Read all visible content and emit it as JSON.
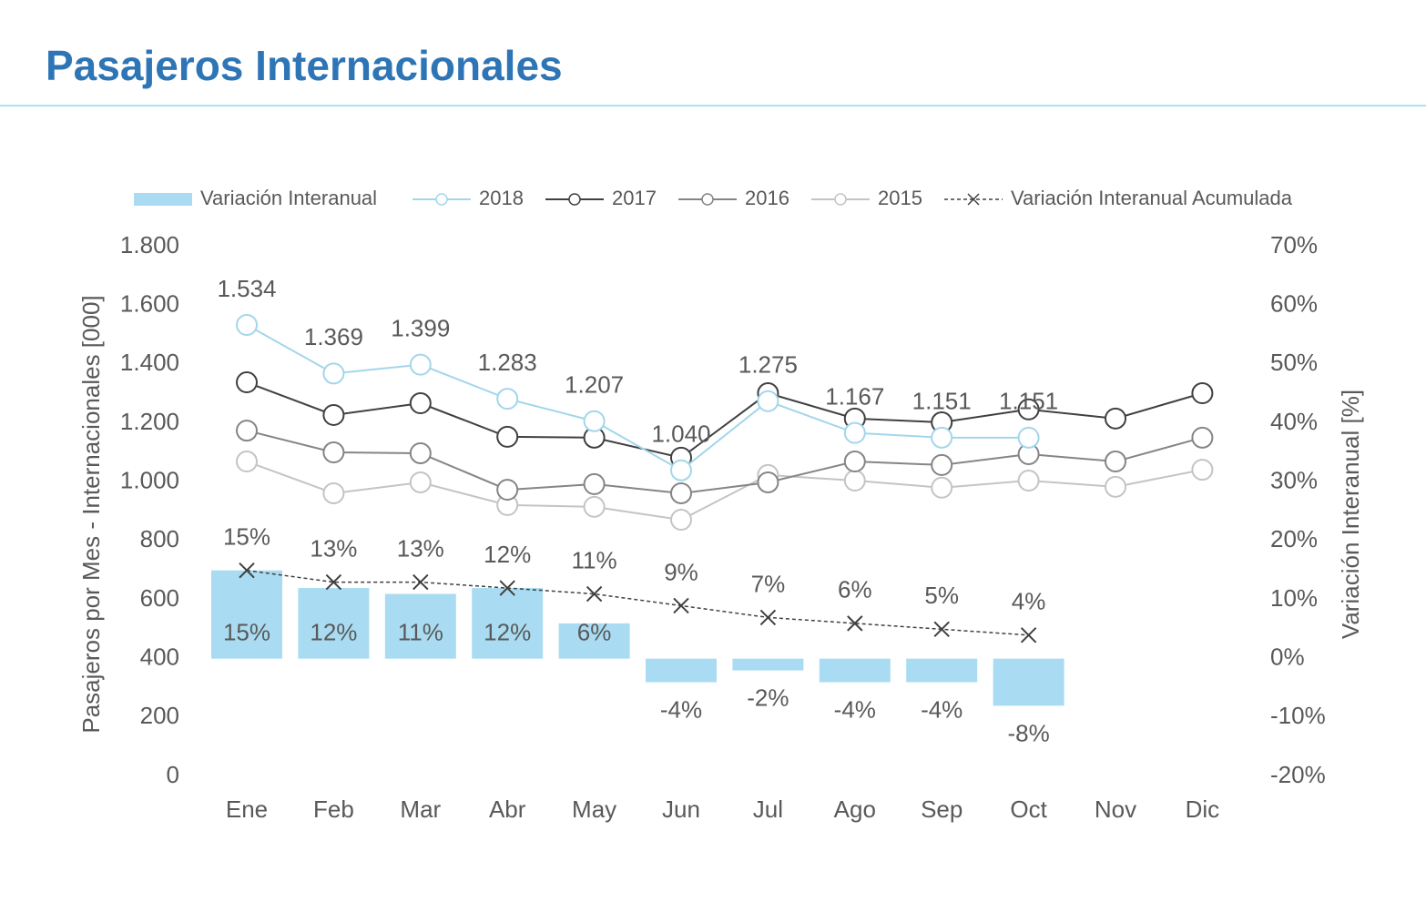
{
  "chart_data": {
    "type": "combo",
    "title": "Pasajeros Internacionales",
    "y_label": "Pasajeros por Mes - Internacionales [000]",
    "y2_label": "Variación Interanual [%]",
    "categories": [
      "Ene",
      "Feb",
      "Mar",
      "Abr",
      "May",
      "Jun",
      "Jul",
      "Ago",
      "Sep",
      "Oct",
      "Nov",
      "Dic"
    ],
    "ylim": [
      0,
      1800
    ],
    "yticks": [
      0,
      200,
      400,
      600,
      800,
      {
        "value": 1000,
        "label": "1.000"
      },
      {
        "value": 1200,
        "label": "1.200"
      },
      {
        "value": 1400,
        "label": "1.400"
      },
      {
        "value": 1600,
        "label": "1.600"
      },
      {
        "value": 1800,
        "label": "1.800"
      }
    ],
    "y2lim": [
      -20,
      70
    ],
    "y2ticks": [
      {
        "value": -20,
        "label": "-20%"
      },
      {
        "value": -10,
        "label": "-10%"
      },
      {
        "value": 0,
        "label": "0%"
      },
      {
        "value": 10,
        "label": "10%"
      },
      {
        "value": 20,
        "label": "20%"
      },
      {
        "value": 30,
        "label": "30%"
      },
      {
        "value": 40,
        "label": "40%"
      },
      {
        "value": 50,
        "label": "50%"
      },
      {
        "value": 60,
        "label": "60%"
      },
      {
        "value": 70,
        "label": "70%"
      }
    ],
    "legend": "top",
    "series": [
      {
        "name": "Variación Interanual",
        "type": "bar",
        "axis": "y2",
        "color": "#a9dcf2",
        "values": [
          15,
          12,
          11,
          12,
          6,
          -4,
          -2,
          -4,
          -4,
          -8,
          null,
          null
        ],
        "value_labels": [
          "15%",
          "12%",
          "11%",
          "12%",
          "6%",
          "-4%",
          "-2%",
          "-4%",
          "-4%",
          "-8%",
          null,
          null
        ]
      },
      {
        "name": "2018",
        "type": "line",
        "color": "#a3d6ea",
        "values": [
          1534,
          1369,
          1399,
          1283,
          1207,
          1040,
          1275,
          1167,
          1151,
          1151,
          null,
          null
        ],
        "value_labels": [
          "1.534",
          "1.369",
          "1.399",
          "1.283",
          "1.207",
          "1.040",
          "1.275",
          "1.167",
          "1.151",
          "1.151",
          null,
          null
        ]
      },
      {
        "name": "2017",
        "type": "line",
        "color": "#404040",
        "values": [
          1339,
          1228,
          1268,
          1154,
          1151,
          1083,
          1302,
          1216,
          1203,
          1247,
          1216,
          1302
        ]
      },
      {
        "name": "2016",
        "type": "line",
        "color": "#858585",
        "values": [
          1175,
          1101,
          1098,
          974,
          993,
          962,
          999,
          1070,
          1058,
          1095,
          1070,
          1151
        ]
      },
      {
        "name": "2015",
        "type": "line",
        "color": "#c4c4c4",
        "values": [
          1070,
          962,
          999,
          922,
          916,
          872,
          1024,
          1005,
          981,
          1005,
          984,
          1042
        ]
      },
      {
        "name": "Variación Interanual Acumulada",
        "type": "cumline",
        "axis": "y2",
        "color": "#404040",
        "values": [
          15,
          13,
          13,
          12,
          11,
          9,
          7,
          6,
          5,
          4,
          null,
          null
        ],
        "value_labels": [
          "15%",
          "13%",
          "13%",
          "12%",
          "11%",
          "9%",
          "7%",
          "6%",
          "5%",
          "4%",
          null,
          null
        ]
      }
    ]
  }
}
